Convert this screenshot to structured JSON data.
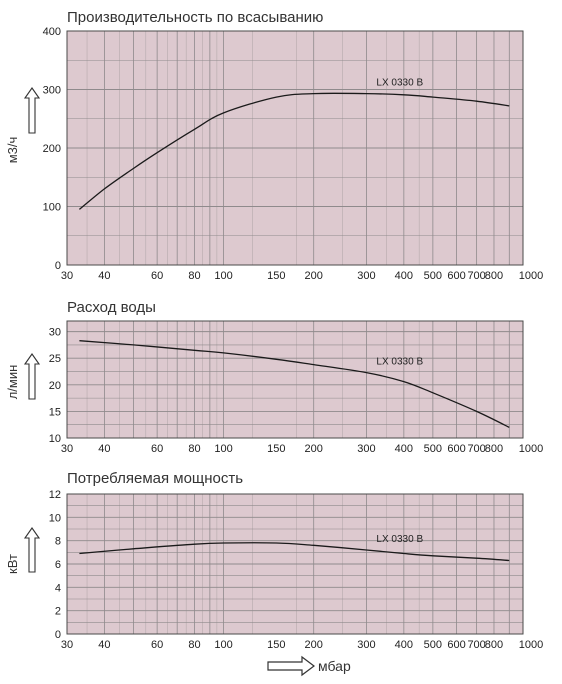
{
  "colors": {
    "plot_background": "#ddc9cf",
    "grid": "#8f8a8c",
    "curve": "#1a1a1a",
    "frame": "#4a4a4a"
  },
  "x_unit_label": "мбар",
  "chart_data": [
    {
      "type": "line",
      "title": "Производительность по всасыванию",
      "ylabel": "м3/ч",
      "xscale": "log",
      "xlim": [
        30,
        1000
      ],
      "ylim": [
        0,
        400
      ],
      "grid": true,
      "x_ticks": [
        30,
        40,
        60,
        80,
        100,
        150,
        200,
        300,
        400,
        500,
        600,
        700,
        800,
        1000
      ],
      "y_ticks": [
        0,
        100,
        200,
        300,
        400
      ],
      "series": [
        {
          "name": "LX 0330 B",
          "x": [
            33,
            40,
            50,
            60,
            80,
            100,
            150,
            200,
            300,
            400,
            500,
            700,
            900
          ],
          "y": [
            95,
            130,
            165,
            192,
            232,
            260,
            287,
            293,
            293,
            291,
            287,
            280,
            272
          ]
        }
      ]
    },
    {
      "type": "line",
      "title": "Расход воды",
      "ylabel": "л/мин",
      "xscale": "log",
      "xlim": [
        30,
        1000
      ],
      "ylim": [
        10,
        32
      ],
      "grid": true,
      "x_ticks": [
        30,
        40,
        60,
        80,
        100,
        150,
        200,
        300,
        400,
        500,
        600,
        700,
        800,
        1000
      ],
      "y_ticks": [
        10,
        15,
        20,
        25,
        30
      ],
      "series": [
        {
          "name": "LX 0330 B",
          "x": [
            33,
            50,
            80,
            100,
            150,
            200,
            300,
            400,
            500,
            700,
            900
          ],
          "y": [
            28.3,
            27.5,
            26.5,
            26,
            24.8,
            23.8,
            22.3,
            20.6,
            18.5,
            15,
            12
          ]
        }
      ]
    },
    {
      "type": "line",
      "title": "Потребляемая мощность",
      "ylabel": "кВт",
      "xscale": "log",
      "xlim": [
        30,
        1000
      ],
      "ylim": [
        0,
        12
      ],
      "grid": true,
      "x_ticks": [
        30,
        40,
        60,
        80,
        100,
        150,
        200,
        300,
        400,
        500,
        600,
        700,
        800,
        1000
      ],
      "y_ticks": [
        0,
        2,
        4,
        6,
        8,
        10,
        12
      ],
      "series": [
        {
          "name": "LX 0330 B",
          "x": [
            33,
            50,
            80,
            100,
            150,
            200,
            300,
            400,
            500,
            700,
            900
          ],
          "y": [
            6.9,
            7.3,
            7.7,
            7.8,
            7.8,
            7.6,
            7.2,
            6.9,
            6.7,
            6.5,
            6.3
          ]
        }
      ]
    }
  ]
}
